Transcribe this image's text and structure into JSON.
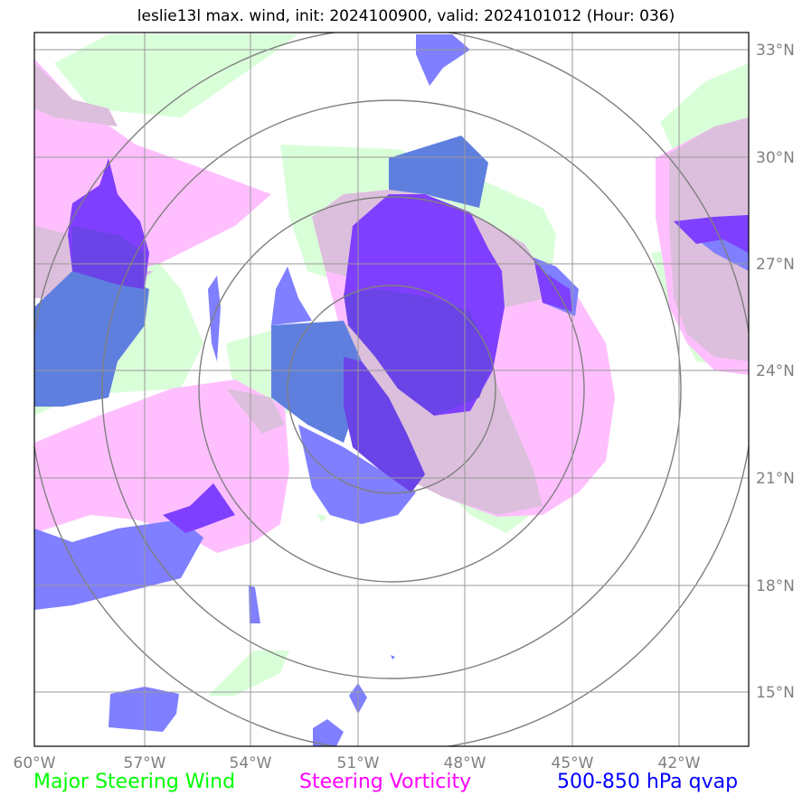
{
  "title": "leslie13l max. wind, init: 2024100900, valid: 2024101012 (Hour: 036)",
  "lon_labels": [
    "60°W",
    "57°W",
    "54°W",
    "51°W",
    "48°W",
    "45°W",
    "42°W"
  ],
  "lat_labels": [
    "33°N",
    "30°N",
    "27°N",
    "24°N",
    "21°N",
    "18°N",
    "15°N"
  ],
  "legend": {
    "wind": "Major Steering Wind",
    "vorticity": "Steering Vorticity",
    "qvap": "500-850 hPa qvap"
  },
  "colors": {
    "wind_fill": "#d9ffd9",
    "vorticity_fill": "#ffbfff",
    "overlap_fill": "#dcbfdc",
    "qvap_light": "#7f7fff",
    "qvap_mid": "#5f7fdf",
    "qvap_dark": "#7f3fff",
    "grid": "#999999",
    "ring": "#7f7f7f",
    "legend_wind": "#00ff00",
    "legend_vorticity": "#ff00ff",
    "legend_qvap": "#0000ff"
  }
}
